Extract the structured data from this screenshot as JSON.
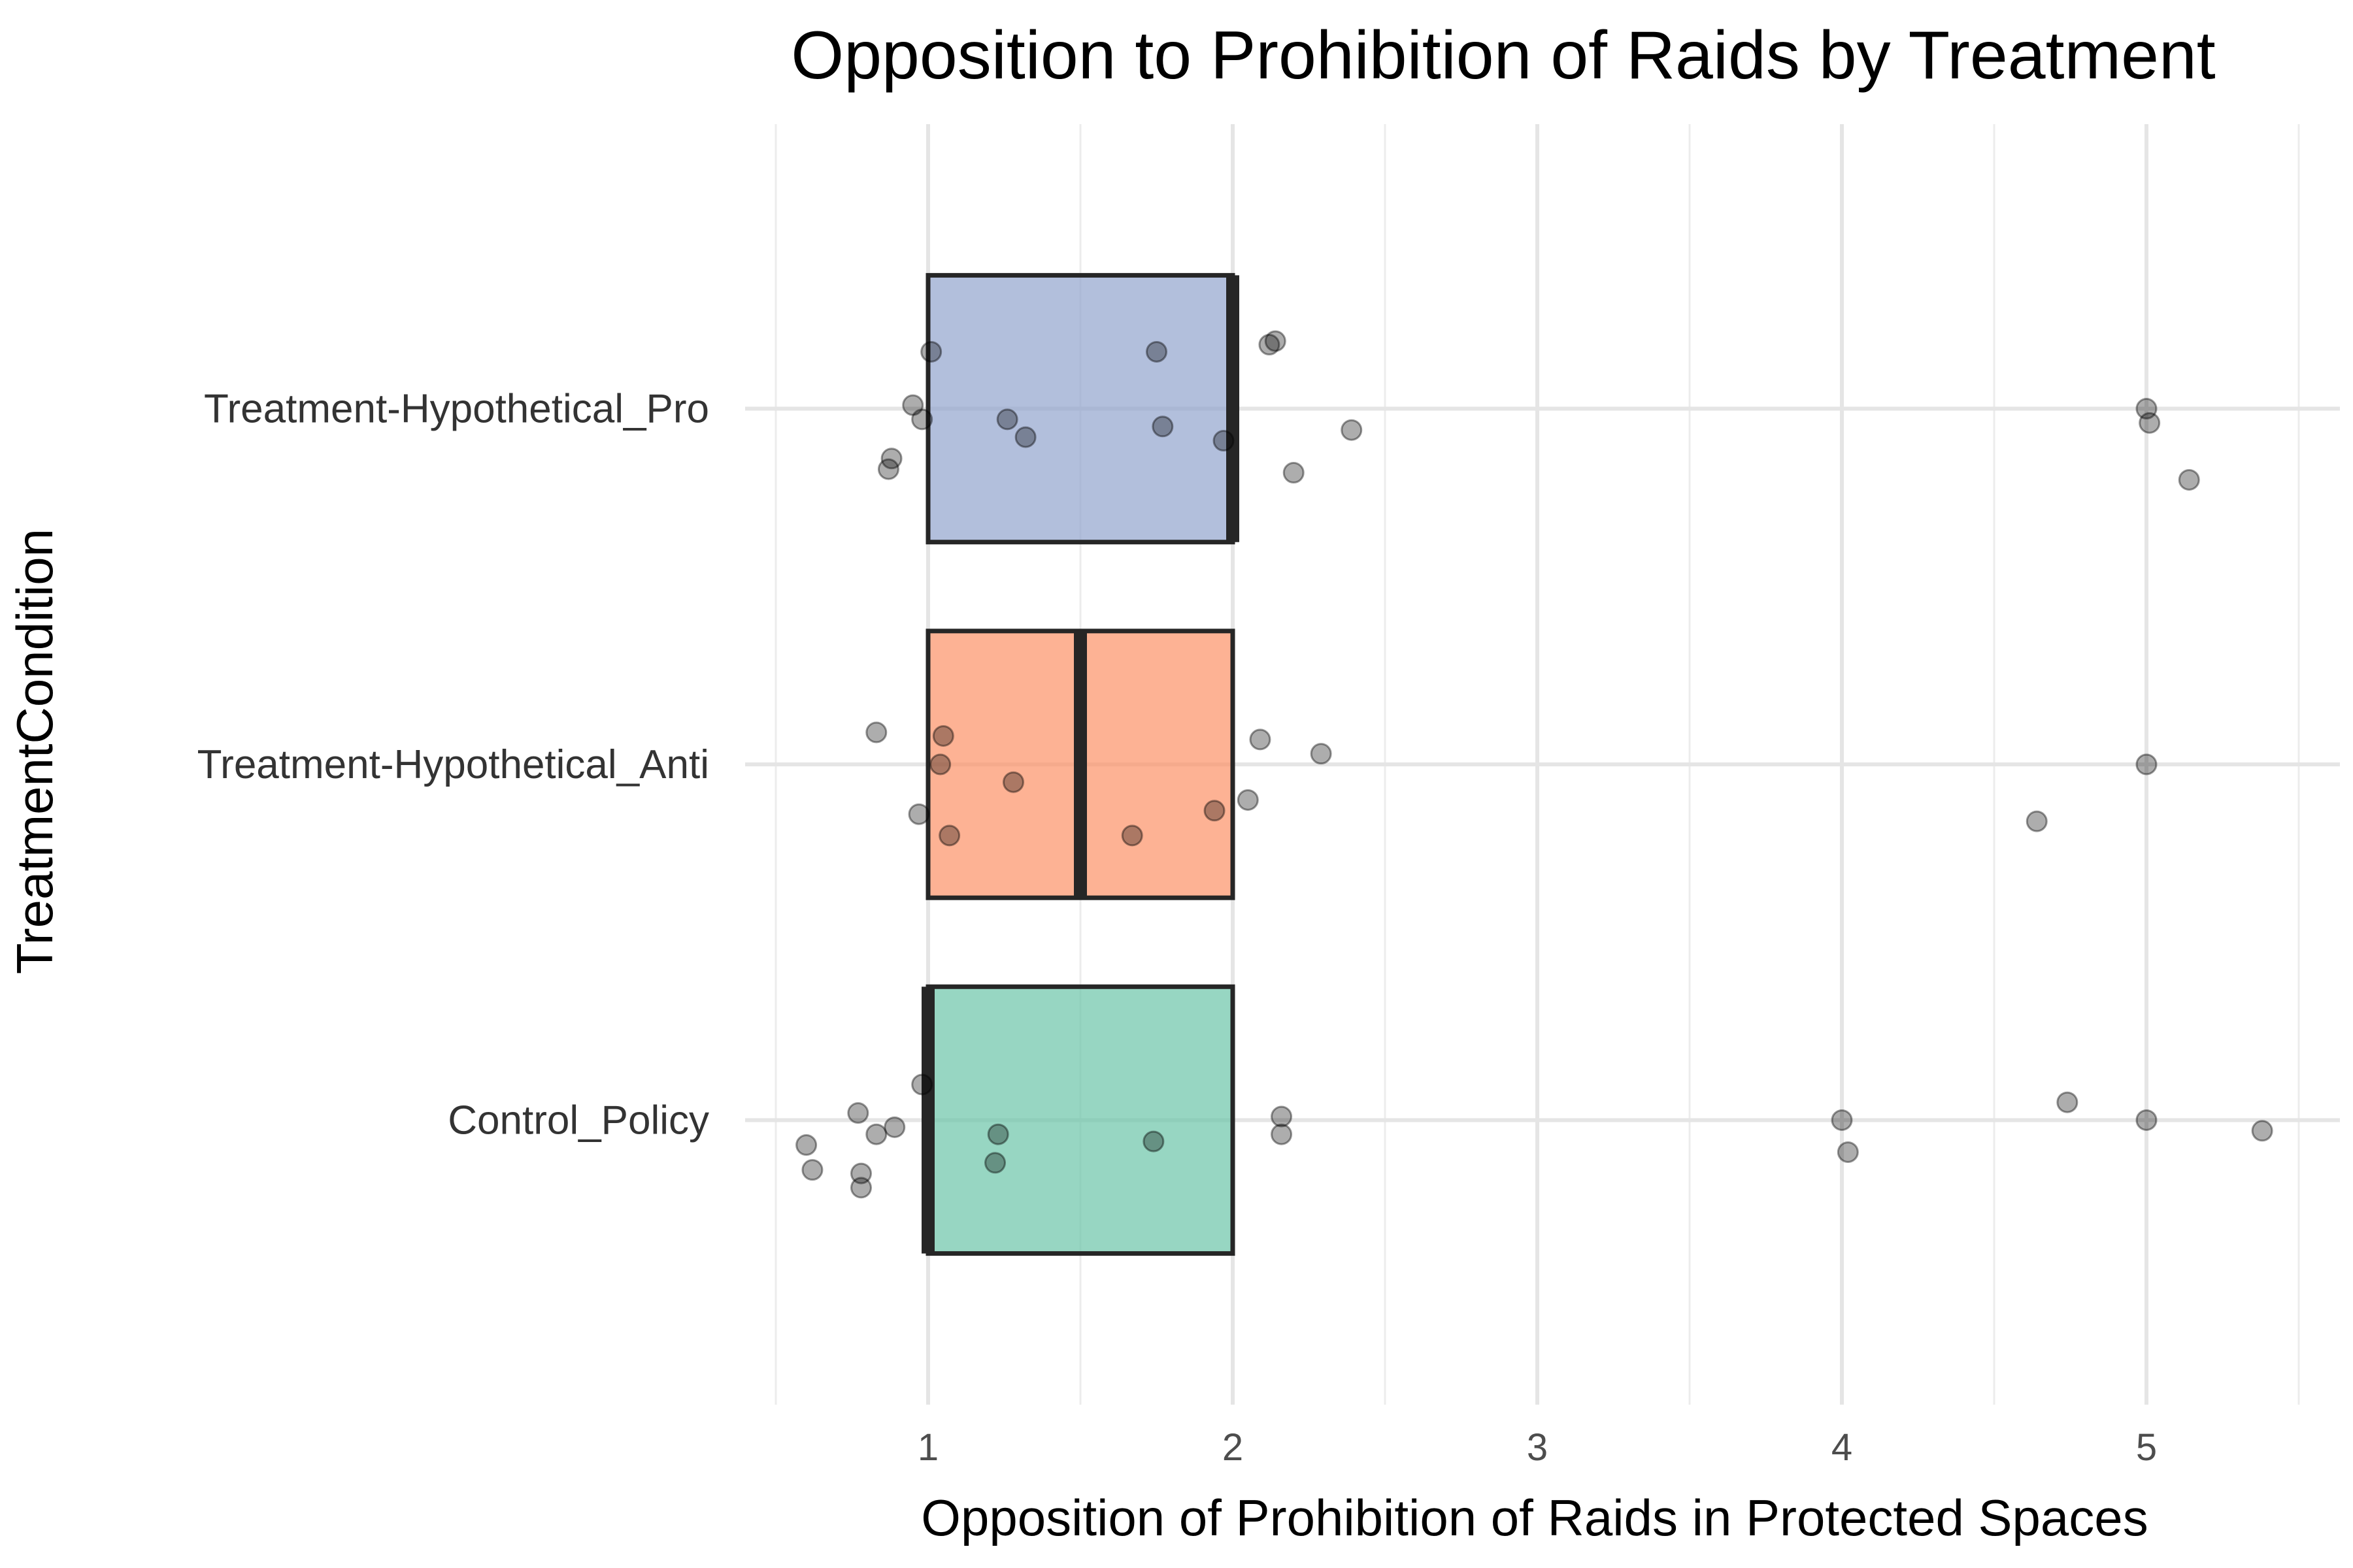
{
  "chart_data": {
    "type": "boxplot",
    "orientation": "horizontal",
    "title": "Opposition to Prohibition of Raids by Treatment",
    "xlabel": "Opposition of Prohibition of Raids in Protected Spaces",
    "ylabel": "TreatmentCondition",
    "xlim": [
      0.5,
      5.58
    ],
    "x_ticks": [
      1,
      2,
      3,
      4,
      5
    ],
    "x_tick_labels": [
      "1",
      "2",
      "3",
      "4",
      "5"
    ],
    "grid": true,
    "legend": "none",
    "categories": [
      "Control_Policy",
      "Treatment-Hypothetical_Anti",
      "Treatment-Hypothetical_Pro"
    ],
    "series": [
      {
        "category": "Control_Policy",
        "color": "#66c2a5",
        "q1": 1,
        "median": 1,
        "q3": 2,
        "points": [
          [
            0.6,
            -0.07
          ],
          [
            0.62,
            -0.14
          ],
          [
            0.77,
            0.02
          ],
          [
            0.83,
            -0.04
          ],
          [
            0.89,
            -0.02
          ],
          [
            0.78,
            -0.15
          ],
          [
            0.78,
            -0.19
          ],
          [
            0.98,
            0.1
          ],
          [
            1.23,
            -0.04
          ],
          [
            1.22,
            -0.12
          ],
          [
            1.74,
            -0.06
          ],
          [
            2.16,
            0.01
          ],
          [
            2.16,
            -0.04
          ],
          [
            4.0,
            0.0
          ],
          [
            4.02,
            -0.09
          ],
          [
            4.74,
            0.05
          ],
          [
            5.0,
            0.0
          ],
          [
            5.38,
            -0.03
          ]
        ]
      },
      {
        "category": "Treatment-Hypothetical_Anti",
        "color": "#fc8d62",
        "q1": 1,
        "median": 1.5,
        "q3": 2,
        "points": [
          [
            0.83,
            0.09
          ],
          [
            1.05,
            0.08
          ],
          [
            1.04,
            0.0
          ],
          [
            1.28,
            -0.05
          ],
          [
            0.97,
            -0.14
          ],
          [
            1.07,
            -0.2
          ],
          [
            1.67,
            -0.2
          ],
          [
            1.94,
            -0.13
          ],
          [
            2.09,
            0.07
          ],
          [
            2.05,
            -0.1
          ],
          [
            2.29,
            0.03
          ],
          [
            4.64,
            -0.16
          ],
          [
            5.0,
            0.0
          ]
        ]
      },
      {
        "category": "Treatment-Hypothetical_Pro",
        "color": "#8da0cb",
        "q1": 1,
        "median": 2,
        "q3": 2,
        "points": [
          [
            1.01,
            0.16
          ],
          [
            0.95,
            0.01
          ],
          [
            0.98,
            -0.03
          ],
          [
            0.88,
            -0.14
          ],
          [
            0.87,
            -0.17
          ],
          [
            1.26,
            -0.03
          ],
          [
            1.32,
            -0.08
          ],
          [
            1.75,
            0.16
          ],
          [
            1.77,
            -0.05
          ],
          [
            1.97,
            -0.09
          ],
          [
            2.12,
            0.18
          ],
          [
            2.14,
            0.19
          ],
          [
            2.2,
            -0.18
          ],
          [
            2.39,
            -0.06
          ],
          [
            5.0,
            0.0
          ],
          [
            5.01,
            -0.04
          ],
          [
            5.14,
            -0.2
          ]
        ]
      }
    ]
  }
}
